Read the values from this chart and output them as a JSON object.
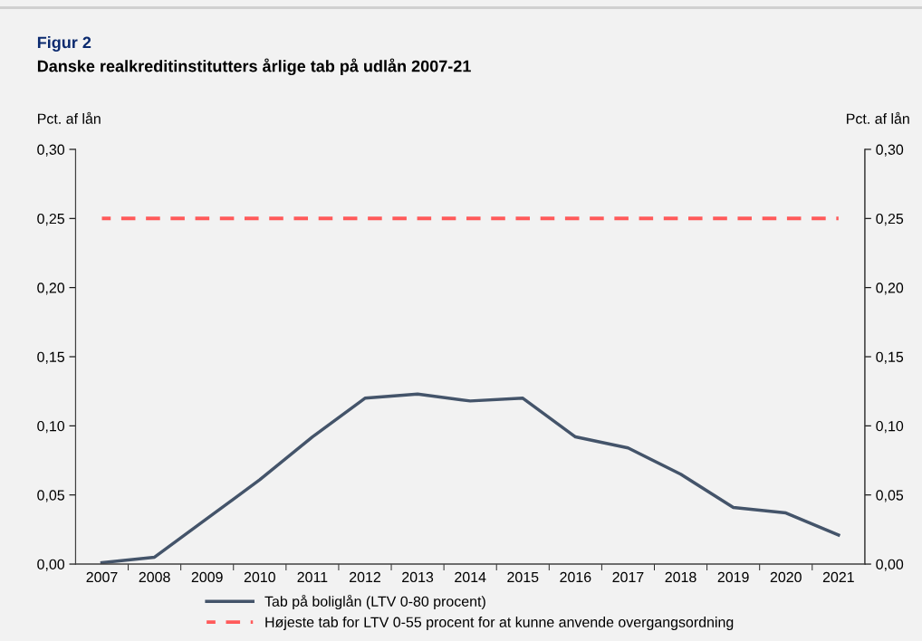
{
  "chart_data": {
    "type": "line",
    "title": "Figur 2",
    "subtitle": "Danske realkreditinstitutters årlige tab på udlån 2007-21",
    "ylabel": "Pct. af lån",
    "y2label": "Pct. af lån",
    "categories": [
      "2007",
      "2008",
      "2009",
      "2010",
      "2011",
      "2012",
      "2013",
      "2014",
      "2015",
      "2016",
      "2017",
      "2018",
      "2019",
      "2020",
      "2021"
    ],
    "series": [
      {
        "name": "Tab på boliglån (LTV 0-80 procent)",
        "color": "#44546a",
        "line_style": "solid",
        "values": [
          0.001,
          0.005,
          0.033,
          0.061,
          0.092,
          0.12,
          0.123,
          0.118,
          0.12,
          0.092,
          0.084,
          0.065,
          0.041,
          0.037,
          0.021
        ]
      },
      {
        "name": "Højeste tab for LTV 0-55 procent for at kunne anvende overgangsordning",
        "color": "#ff5a5a",
        "line_style": "dashed",
        "values": [
          0.25,
          0.25,
          0.25,
          0.25,
          0.25,
          0.25,
          0.25,
          0.25,
          0.25,
          0.25,
          0.25,
          0.25,
          0.25,
          0.25,
          0.25
        ]
      }
    ],
    "ylim": [
      0,
      0.3
    ],
    "yticks": [
      {
        "value": 0,
        "label": "0,00"
      },
      {
        "value": 0.05,
        "label": "0,05"
      },
      {
        "value": 0.1,
        "label": "0,10"
      },
      {
        "value": 0.15,
        "label": "0,15"
      },
      {
        "value": 0.2,
        "label": "0,20"
      },
      {
        "value": 0.25,
        "label": "0,25"
      },
      {
        "value": 0.3,
        "label": "0,30"
      }
    ],
    "y2lim": [
      0,
      0.3
    ],
    "y2ticks": [
      {
        "value": 0,
        "label": "0,00"
      },
      {
        "value": 0.05,
        "label": "0,05"
      },
      {
        "value": 0.1,
        "label": "0,10"
      },
      {
        "value": 0.15,
        "label": "0,15"
      },
      {
        "value": 0.2,
        "label": "0,20"
      },
      {
        "value": 0.25,
        "label": "0,25"
      },
      {
        "value": 0.3,
        "label": "0,30"
      }
    ],
    "grid": false,
    "legend": "bottom",
    "marker": "none"
  }
}
